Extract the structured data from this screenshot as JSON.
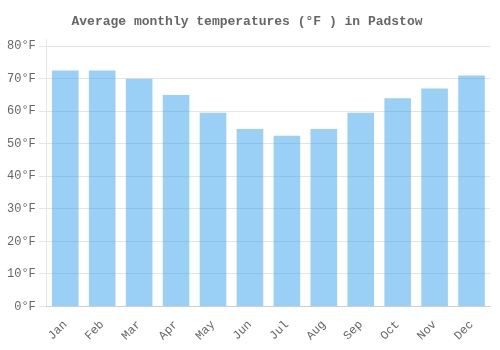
{
  "chart_data": {
    "type": "bar",
    "title": "Average monthly temperatures (°F ) in Padstow",
    "categories": [
      "Jan",
      "Feb",
      "Mar",
      "Apr",
      "May",
      "Jun",
      "Jul",
      "Aug",
      "Sep",
      "Oct",
      "Nov",
      "Dec"
    ],
    "values": [
      72.5,
      72.5,
      70,
      65,
      59.5,
      54.5,
      52.5,
      54.5,
      59.5,
      64,
      67,
      71
    ],
    "ylim": [
      0,
      82
    ],
    "yticks": [
      {
        "value": 0,
        "label": "0°F"
      },
      {
        "value": 10,
        "label": "10°F"
      },
      {
        "value": 20,
        "label": "20°F"
      },
      {
        "value": 30,
        "label": "30°F"
      },
      {
        "value": 40,
        "label": "40°F"
      },
      {
        "value": 50,
        "label": "50°F"
      },
      {
        "value": 60,
        "label": "60°F"
      },
      {
        "value": 70,
        "label": "70°F"
      },
      {
        "value": 80,
        "label": "80°F"
      }
    ],
    "grid": true
  }
}
